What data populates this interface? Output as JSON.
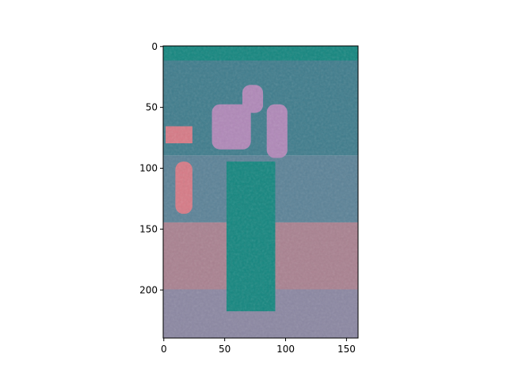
{
  "chart_data": {
    "type": "heatmap",
    "title": "",
    "xlabel": "",
    "ylabel": "",
    "image_width": 160,
    "image_height": 240,
    "xlim": [
      -0.5,
      159.5
    ],
    "ylim": [
      239.5,
      -0.5
    ],
    "x_ticks": [
      0,
      50,
      100,
      150
    ],
    "y_ticks": [
      0,
      50,
      100,
      150,
      200
    ],
    "x_tick_labels": [
      "0",
      "50",
      "100",
      "150"
    ],
    "y_tick_labels": [
      "0",
      "50",
      "100",
      "150",
      "200"
    ],
    "grid": false,
    "legend": "none",
    "colors": {
      "teal": "#14867f",
      "steel_teal": "#3f7c8c",
      "slate": "#5b8297",
      "mauve": "#9d7fa8",
      "lavender": "#b088b8",
      "salmon": "#d67a86",
      "rose_taupe": "#a98190",
      "grey_blue": "#8b87a2"
    },
    "regions": [
      {
        "label": "upper-background",
        "color": "steel_teal",
        "x": [
          0,
          160
        ],
        "y": [
          0,
          90
        ]
      },
      {
        "label": "top-band",
        "color": "teal",
        "x": [
          0,
          160
        ],
        "y": [
          0,
          12
        ]
      },
      {
        "label": "mid-band",
        "color": "slate",
        "x": [
          0,
          160
        ],
        "y": [
          90,
          145
        ]
      },
      {
        "label": "floor",
        "color": "rose_taupe",
        "x": [
          0,
          160
        ],
        "y": [
          145,
          200
        ]
      },
      {
        "label": "lower-floor",
        "color": "grey_blue",
        "x": [
          0,
          160
        ],
        "y": [
          200,
          240
        ]
      },
      {
        "label": "figure-body",
        "color": "teal",
        "x": [
          52,
          92
        ],
        "y": [
          95,
          218
        ]
      },
      {
        "label": "figure-head",
        "color": "lavender",
        "x": [
          65,
          82
        ],
        "y": [
          32,
          55
        ]
      },
      {
        "label": "left-sleeve",
        "color": "lavender",
        "x": [
          40,
          72
        ],
        "y": [
          48,
          85
        ]
      },
      {
        "label": "right-sleeve",
        "color": "lavender",
        "x": [
          85,
          102
        ],
        "y": [
          48,
          92
        ]
      },
      {
        "label": "left-object",
        "color": "salmon",
        "x": [
          10,
          24
        ],
        "y": [
          95,
          138
        ]
      },
      {
        "label": "left-highlight",
        "color": "salmon",
        "x": [
          2,
          24
        ],
        "y": [
          66,
          80
        ]
      }
    ]
  }
}
